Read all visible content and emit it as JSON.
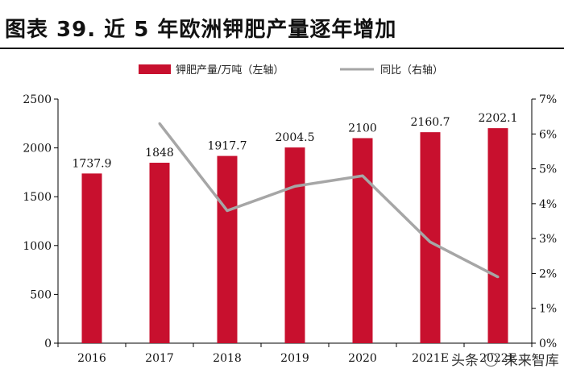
{
  "header": {
    "title": "图表 39. 近 5 年欧洲钾肥产量逐年增加"
  },
  "watermark": {
    "prefix": "头条",
    "source": "未来智库"
  },
  "colors": {
    "bar": "#c8102e",
    "line": "#a6a6a6",
    "axis": "#000000",
    "text": "#111111"
  },
  "chart_data": {
    "type": "bar",
    "title": "图表 39. 近 5 年欧洲钾肥产量逐年增加",
    "categories": [
      "2016",
      "2017",
      "2018",
      "2019",
      "2020",
      "2021E",
      "2022E"
    ],
    "series": [
      {
        "name": "钾肥产量/万吨（左轴）",
        "type": "bar",
        "axis": "left",
        "values": [
          1737.9,
          1848,
          1917.7,
          2004.5,
          2100,
          2160.7,
          2202.1
        ],
        "labels": [
          "1737.9",
          "1848",
          "1917.7",
          "2004.5",
          "2100",
          "2160.7",
          "2202.1"
        ]
      },
      {
        "name": "同比（右轴）",
        "type": "line",
        "axis": "right",
        "values": [
          null,
          6.3,
          3.8,
          4.5,
          4.8,
          2.9,
          1.9
        ]
      }
    ],
    "left_axis": {
      "min": 0,
      "max": 2500,
      "ticks": [
        0,
        500,
        1000,
        1500,
        2000,
        2500
      ]
    },
    "right_axis": {
      "min": 0,
      "max": 7,
      "ticks": [
        "0%",
        "1%",
        "2%",
        "3%",
        "4%",
        "5%",
        "6%",
        "7%"
      ]
    },
    "legend_position": "top"
  }
}
